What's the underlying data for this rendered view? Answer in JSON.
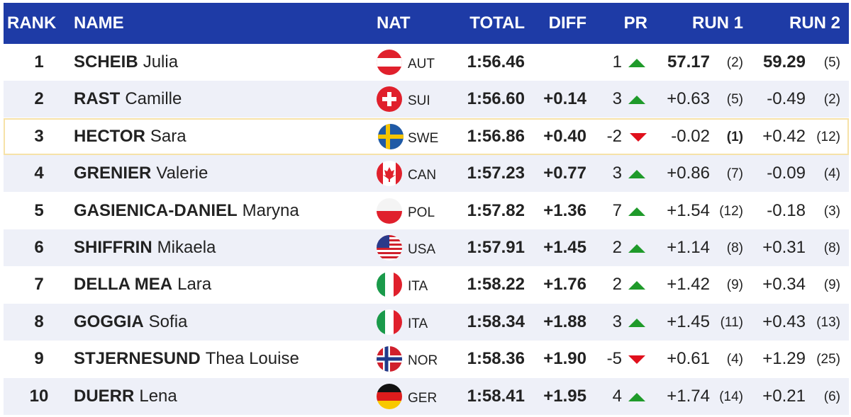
{
  "table": {
    "columns": [
      "RANK",
      "NAME",
      "NAT",
      "TOTAL",
      "DIFF",
      "PR",
      "RUN 1",
      "RUN 2"
    ],
    "selected_row": 2,
    "rows": [
      {
        "rank": 1,
        "surname": "SCHEIB",
        "given_name": "Julia",
        "nat": "AUT",
        "total": "1:56.46",
        "pr": 1,
        "run1": "57.17",
        "run1_rank": "(2)",
        "run2": "59.29",
        "run2_rank": "(5)",
        "bold": [
          "run1",
          "run2"
        ]
      },
      {
        "rank": 2,
        "surname": "RAST",
        "given_name": "Camille",
        "nat": "SUI",
        "total": "1:56.60",
        "diff": "+0.14",
        "pr": 3,
        "run1": "+0.63",
        "run1_rank": "(5)",
        "run2": "-0.49",
        "run2_rank": "(2)"
      },
      {
        "rank": 3,
        "surname": "HECTOR",
        "given_name": "Sara",
        "nat": "SWE",
        "total": "1:56.86",
        "diff": "+0.40",
        "pr": -2,
        "run1": "-0.02",
        "run1_rank": "(1)",
        "run2": "+0.42",
        "run2_rank": "(12)",
        "bold": [
          "run1_rank"
        ]
      },
      {
        "rank": 4,
        "surname": "GRENIER",
        "given_name": "Valerie",
        "nat": "CAN",
        "total": "1:57.23",
        "diff": "+0.77",
        "pr": 3,
        "run1": "+0.86",
        "run1_rank": "(7)",
        "run2": "-0.09",
        "run2_rank": "(4)"
      },
      {
        "rank": 5,
        "surname": "GASIENICA-DANIEL",
        "given_name": "Maryna",
        "nat": "POL",
        "total": "1:57.82",
        "diff": "+1.36",
        "pr": 7,
        "run1": "+1.54",
        "run1_rank": "(12)",
        "run2": "-0.18",
        "run2_rank": "(3)"
      },
      {
        "rank": 6,
        "surname": "SHIFFRIN",
        "given_name": "Mikaela",
        "nat": "USA",
        "total": "1:57.91",
        "diff": "+1.45",
        "pr": 2,
        "run1": "+1.14",
        "run1_rank": "(8)",
        "run2": "+0.31",
        "run2_rank": "(8)"
      },
      {
        "rank": 7,
        "surname": "DELLA MEA",
        "given_name": "Lara",
        "nat": "ITA",
        "total": "1:58.22",
        "diff": "+1.76",
        "pr": 2,
        "run1": "+1.42",
        "run1_rank": "(9)",
        "run2": "+0.34",
        "run2_rank": "(9)"
      },
      {
        "rank": 8,
        "surname": "GOGGIA",
        "given_name": "Sofia",
        "nat": "ITA",
        "total": "1:58.34",
        "diff": "+1.88",
        "pr": 3,
        "run1": "+1.45",
        "run1_rank": "(11)",
        "run2": "+0.43",
        "run2_rank": "(13)"
      },
      {
        "rank": 9,
        "surname": "STJERNESUND",
        "given_name": "Thea Louise",
        "nat": "NOR",
        "total": "1:58.36",
        "diff": "+1.90",
        "pr": -5,
        "run1": "+0.61",
        "run1_rank": "(4)",
        "run2": "+1.29",
        "run2_rank": "(25)"
      },
      {
        "rank": 10,
        "surname": "DUERR",
        "given_name": "Lena",
        "nat": "GER",
        "total": "1:58.41",
        "diff": "+1.95",
        "pr": 4,
        "run1": "+1.74",
        "run1_rank": "(14)",
        "run2": "+0.21",
        "run2_rank": "(6)"
      }
    ]
  }
}
